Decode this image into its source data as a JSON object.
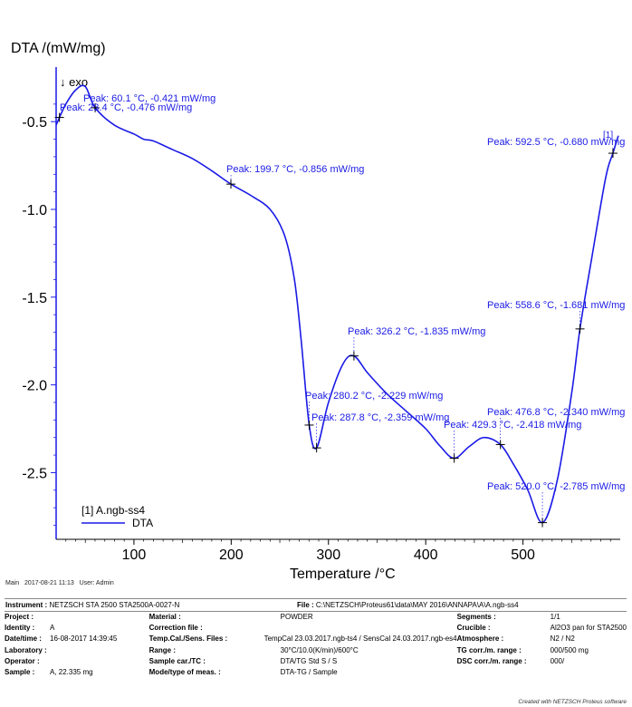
{
  "chart_data": {
    "type": "line",
    "ylabel": "DTA /(mW/mg)",
    "xlabel": "Temperature /°C",
    "direction_note": "↓ exo",
    "xlim": [
      20,
      600
    ],
    "ylim": [
      -2.88,
      -0.22
    ],
    "x_ticks": [
      100,
      200,
      300,
      400,
      500
    ],
    "x_tick_labels": [
      "100",
      "200",
      "300",
      "400",
      "500"
    ],
    "y_ticks": [
      -0.5,
      -1.0,
      -1.5,
      -2.0,
      -2.5
    ],
    "y_tick_labels": [
      "-0.5",
      "-1.0",
      "-1.5",
      "-2.0",
      "-2.5"
    ],
    "grid": false,
    "legend_position": "bottom-left",
    "curve_tag": "[1]",
    "series": [
      {
        "name": "DTA",
        "legend_title": "[1] A.ngb-ss4",
        "color": "#1a1ae6",
        "points": [
          [
            20,
            -0.52
          ],
          [
            23.4,
            -0.476
          ],
          [
            30,
            -0.4
          ],
          [
            40,
            -0.32
          ],
          [
            50,
            -0.3
          ],
          [
            60.1,
            -0.421
          ],
          [
            80,
            -0.52
          ],
          [
            100,
            -0.57
          ],
          [
            110,
            -0.6
          ],
          [
            120,
            -0.61
          ],
          [
            140,
            -0.66
          ],
          [
            160,
            -0.71
          ],
          [
            180,
            -0.78
          ],
          [
            199.7,
            -0.856
          ],
          [
            220,
            -0.92
          ],
          [
            240,
            -1.0
          ],
          [
            255,
            -1.15
          ],
          [
            265,
            -1.4
          ],
          [
            272,
            -1.75
          ],
          [
            280.2,
            -2.229
          ],
          [
            287.8,
            -2.359
          ],
          [
            300,
            -2.1
          ],
          [
            315,
            -1.88
          ],
          [
            326.2,
            -1.835
          ],
          [
            340,
            -1.93
          ],
          [
            360,
            -2.05
          ],
          [
            380,
            -2.15
          ],
          [
            400,
            -2.25
          ],
          [
            415,
            -2.35
          ],
          [
            429.3,
            -2.418
          ],
          [
            445,
            -2.35
          ],
          [
            460,
            -2.3
          ],
          [
            476.8,
            -2.34
          ],
          [
            490,
            -2.45
          ],
          [
            505,
            -2.6
          ],
          [
            520.0,
            -2.785
          ],
          [
            535,
            -2.55
          ],
          [
            550,
            -2.05
          ],
          [
            558.6,
            -1.681
          ],
          [
            570,
            -1.3
          ],
          [
            585,
            -0.82
          ],
          [
            592.5,
            -0.68
          ],
          [
            598,
            -0.58
          ]
        ]
      }
    ],
    "annotations": [
      {
        "label": "Peak: 60.1 °C, -0.421 mW/mg",
        "x": 60.1,
        "y": -0.421
      },
      {
        "label": "Peak: 23.4 °C, -0.476 mW/mg",
        "x": 23.4,
        "y": -0.476
      },
      {
        "label": "Peak: 199.7 °C, -0.856 mW/mg",
        "x": 199.7,
        "y": -0.856
      },
      {
        "label": "Peak: 326.2 °C, -1.835 mW/mg",
        "x": 326.2,
        "y": -1.835
      },
      {
        "label": "Peak: 280.2 °C, -2.229 mW/mg",
        "x": 280.2,
        "y": -2.229
      },
      {
        "label": "Peak: 287.8 °C, -2.359 mW/mg",
        "x": 287.8,
        "y": -2.359
      },
      {
        "label": "Peak: 429.3 °C, -2.418 mW/mg",
        "x": 429.3,
        "y": -2.418
      },
      {
        "label": "Peak: 476.8 °C, -2.340 mW/mg",
        "x": 476.8,
        "y": -2.34
      },
      {
        "label": "Peak: 520.0 °C, -2.785 mW/mg",
        "x": 520.0,
        "y": -2.785
      },
      {
        "label": "Peak: 558.6 °C, -1.681 mW/mg",
        "x": 558.6,
        "y": -1.681
      },
      {
        "label": "Peak: 592.5 °C, -0.680 mW/mg",
        "x": 592.5,
        "y": -0.68
      }
    ]
  },
  "footer": {
    "main_label": "Main",
    "date": "2017-08-21 11:13",
    "user": "User: Admin"
  },
  "info": {
    "instrument_label": "Instrument :",
    "instrument_value": "NETZSCH STA 2500 STA2500A-0027-N",
    "file_label": "File :",
    "file_value": "C:\\NETZSCH\\Proteus61\\data\\MAY 2016\\ANNAPA\\A\\A.ngb-ss4",
    "col1": [
      {
        "label": "Project :",
        "value": ""
      },
      {
        "label": "Identity :",
        "value": "A"
      },
      {
        "label": "Date/time :",
        "value": "16-08-2017 14:39:45"
      },
      {
        "label": "Laboratory :",
        "value": ""
      },
      {
        "label": "Operator :",
        "value": ""
      },
      {
        "label": "Sample :",
        "value": "A, 22.335 mg"
      }
    ],
    "col2": [
      {
        "label": "Material :",
        "value": "POWDER"
      },
      {
        "label": "Correction file :",
        "value": ""
      },
      {
        "label": "Temp.Cal./Sens. Files :",
        "value": "TempCal 23.03.2017.ngb-ts4 / SensCal 24.03.2017.ngb-es4"
      },
      {
        "label": "Range :",
        "value": "30°C/10.0(K/min)/600°C"
      },
      {
        "label": "Sample car./TC :",
        "value": "DTA/TG Std S / S"
      },
      {
        "label": "Mode/type of meas. :",
        "value": "DTA-TG / Sample"
      }
    ],
    "col3": [
      {
        "label": "Segments :",
        "value": "1/1"
      },
      {
        "label": "Crucible :",
        "value": "Al2O3 pan for STA2500"
      },
      {
        "label": "Atmosphere :",
        "value": "N2 / N2"
      },
      {
        "label": "TG corr./m. range :",
        "value": "000/500 mg"
      },
      {
        "label": "DSC corr./m. range :",
        "value": "000/"
      },
      {
        "label": "",
        "value": ""
      }
    ]
  },
  "credit": "Created with NETZSCH Proteus software"
}
